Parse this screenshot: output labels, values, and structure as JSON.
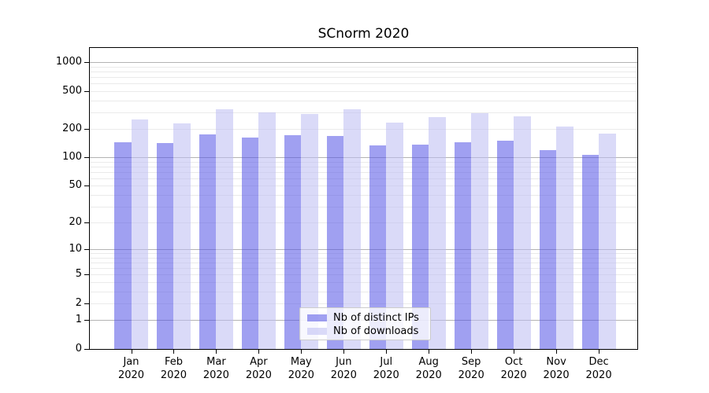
{
  "chart_data": {
    "type": "bar",
    "title": "SCnorm 2020",
    "categories": [
      "Jan",
      "Feb",
      "Mar",
      "Apr",
      "May",
      "Jun",
      "Jul",
      "Aug",
      "Sep",
      "Oct",
      "Nov",
      "Dec"
    ],
    "category_year": "2020",
    "series": [
      {
        "name": "Nb of distinct IPs",
        "color": "rgba(82,82,230,0.55)",
        "color_hex_perceived": "#a0a0f1",
        "values": [
          144,
          142,
          176,
          163,
          171,
          170,
          133,
          138,
          145,
          150,
          120,
          107
        ]
      },
      {
        "name": "Nb of downloads",
        "color": "rgba(187,187,242,0.55)",
        "color_hex_perceived": "#d9d9f7",
        "values": [
          250,
          228,
          323,
          300,
          290,
          324,
          234,
          267,
          291,
          269,
          210,
          177
        ]
      }
    ],
    "y_ticks": [
      0,
      1,
      2,
      5,
      10,
      20,
      50,
      100,
      200,
      500,
      1000
    ],
    "yscale": "log10(value+1)",
    "ylim": [
      0,
      1413
    ],
    "grid": "horizontal",
    "grid_major_color": "#b3b3b3",
    "grid_minor_color": "#eaeaea",
    "legend_position": "lower center"
  }
}
